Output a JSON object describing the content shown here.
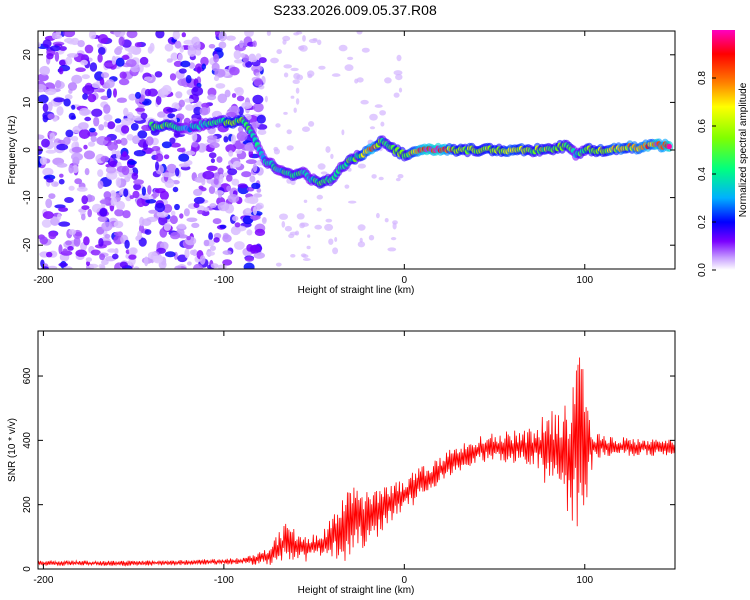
{
  "title": "S233.2026.009.05.37.R08",
  "chart_data": [
    {
      "type": "heatmap",
      "xlabel": "Height of straight line (km)",
      "ylabel": "Frequency (Hz)",
      "xlim": [
        -203,
        150
      ],
      "ylim": [
        -25,
        25
      ],
      "xticks": [
        -200,
        -100,
        0,
        100
      ],
      "yticks": [
        -20,
        -10,
        0,
        10,
        20
      ],
      "colorbar": {
        "label": "Normalized spectral amplitude",
        "range": [
          0,
          1
        ],
        "ticks": [
          0.0,
          0.2,
          0.4,
          0.6,
          0.8
        ],
        "colors": [
          "#ffffff",
          "#c8a0ff",
          "#7a00ff",
          "#0000ff",
          "#00b0ff",
          "#00ff80",
          "#80ff00",
          "#ffff00",
          "#ff8000",
          "#ff0000",
          "#ff00c0"
        ]
      },
      "ridge": [
        {
          "x": -140,
          "f": 5,
          "a": 0.45
        },
        {
          "x": -130,
          "f": 5,
          "a": 0.55
        },
        {
          "x": -120,
          "f": 4.5,
          "a": 0.3
        },
        {
          "x": -110,
          "f": 5.5,
          "a": 0.4
        },
        {
          "x": -100,
          "f": 6,
          "a": 0.5
        },
        {
          "x": -90,
          "f": 6,
          "a": 0.55
        },
        {
          "x": -85,
          "f": 4,
          "a": 0.4
        },
        {
          "x": -78,
          "f": -2,
          "a": 0.35
        },
        {
          "x": -70,
          "f": -4,
          "a": 0.4
        },
        {
          "x": -62,
          "f": -5,
          "a": 0.45
        },
        {
          "x": -55,
          "f": -5,
          "a": 0.4
        },
        {
          "x": -48,
          "f": -7,
          "a": 0.45
        },
        {
          "x": -40,
          "f": -6,
          "a": 0.4
        },
        {
          "x": -33,
          "f": -3,
          "a": 0.45
        },
        {
          "x": -25,
          "f": -1,
          "a": 0.5
        },
        {
          "x": -18,
          "f": 0,
          "a": 0.85
        },
        {
          "x": -12,
          "f": 2,
          "a": 0.45
        },
        {
          "x": -5,
          "f": 0,
          "a": 0.55
        },
        {
          "x": 0,
          "f": -1,
          "a": 0.5
        },
        {
          "x": 10,
          "f": 0,
          "a": 0.95
        },
        {
          "x": 20,
          "f": 0,
          "a": 0.9
        },
        {
          "x": 30,
          "f": 0,
          "a": 0.6
        },
        {
          "x": 40,
          "f": 0,
          "a": 0.55
        },
        {
          "x": 50,
          "f": 0,
          "a": 0.6
        },
        {
          "x": 60,
          "f": 0,
          "a": 0.65
        },
        {
          "x": 70,
          "f": 0,
          "a": 0.55
        },
        {
          "x": 80,
          "f": 0,
          "a": 0.55
        },
        {
          "x": 90,
          "f": 1,
          "a": 0.5
        },
        {
          "x": 95,
          "f": -1,
          "a": 0.4
        },
        {
          "x": 100,
          "f": 0,
          "a": 0.5
        },
        {
          "x": 110,
          "f": 0,
          "a": 0.6
        },
        {
          "x": 120,
          "f": 0.5,
          "a": 0.65
        },
        {
          "x": 130,
          "f": 0.5,
          "a": 0.75
        },
        {
          "x": 140,
          "f": 1,
          "a": 0.9
        },
        {
          "x": 148,
          "f": 1,
          "a": 0.95
        }
      ]
    },
    {
      "type": "line",
      "xlabel": "Height of straight line (km)",
      "ylabel": "SNR (10 * v/v)",
      "xlim": [
        -203,
        150
      ],
      "ylim": [
        0,
        740
      ],
      "xticks": [
        -200,
        -100,
        0,
        100
      ],
      "yticks": [
        0,
        200,
        400,
        600
      ],
      "color": "#ff0000",
      "envelope": [
        {
          "x": -203,
          "y": 18,
          "amp": 8
        },
        {
          "x": -150,
          "y": 18,
          "amp": 8
        },
        {
          "x": -120,
          "y": 20,
          "amp": 8
        },
        {
          "x": -90,
          "y": 25,
          "amp": 10
        },
        {
          "x": -75,
          "y": 40,
          "amp": 30
        },
        {
          "x": -65,
          "y": 90,
          "amp": 60
        },
        {
          "x": -55,
          "y": 60,
          "amp": 40
        },
        {
          "x": -45,
          "y": 80,
          "amp": 40
        },
        {
          "x": -30,
          "y": 140,
          "amp": 120
        },
        {
          "x": -20,
          "y": 170,
          "amp": 100
        },
        {
          "x": -5,
          "y": 210,
          "amp": 60
        },
        {
          "x": 10,
          "y": 270,
          "amp": 50
        },
        {
          "x": 25,
          "y": 330,
          "amp": 40
        },
        {
          "x": 40,
          "y": 370,
          "amp": 40
        },
        {
          "x": 55,
          "y": 380,
          "amp": 50
        },
        {
          "x": 70,
          "y": 380,
          "amp": 60
        },
        {
          "x": 85,
          "y": 370,
          "amp": 150
        },
        {
          "x": 92,
          "y": 340,
          "amp": 200
        },
        {
          "x": 98,
          "y": 400,
          "amp": 320
        },
        {
          "x": 105,
          "y": 385,
          "amp": 40
        },
        {
          "x": 120,
          "y": 380,
          "amp": 30
        },
        {
          "x": 150,
          "y": 378,
          "amp": 25
        }
      ]
    }
  ]
}
